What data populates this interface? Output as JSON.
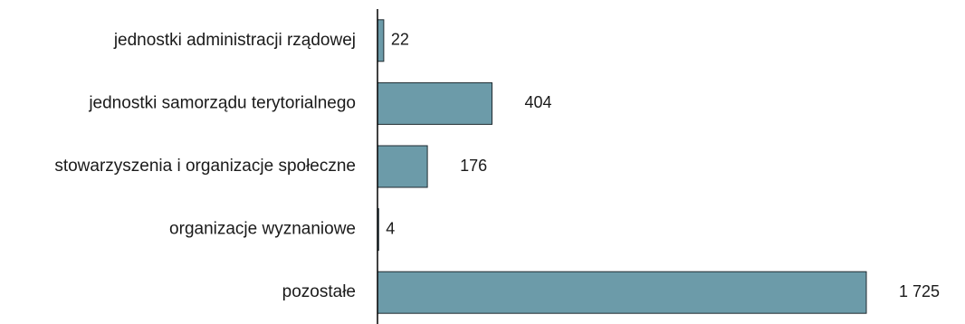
{
  "chart_data": {
    "type": "bar",
    "orientation": "horizontal",
    "categories": [
      "jednostki administracji rządowej",
      "jednostki samorządu terytorialnego",
      "stowarzyszenia i organizacje społeczne",
      "organizacje wyznaniowe",
      "pozostałe"
    ],
    "values": [
      22,
      404,
      176,
      4,
      1725
    ],
    "value_labels": [
      "22",
      "404",
      "176",
      "4",
      "1 725"
    ],
    "xlim": [
      0,
      1800
    ],
    "grid": false,
    "legend": "none",
    "colors": {
      "bar_fill": "#6c9ba9",
      "bar_stroke": "#1f2a30"
    }
  }
}
